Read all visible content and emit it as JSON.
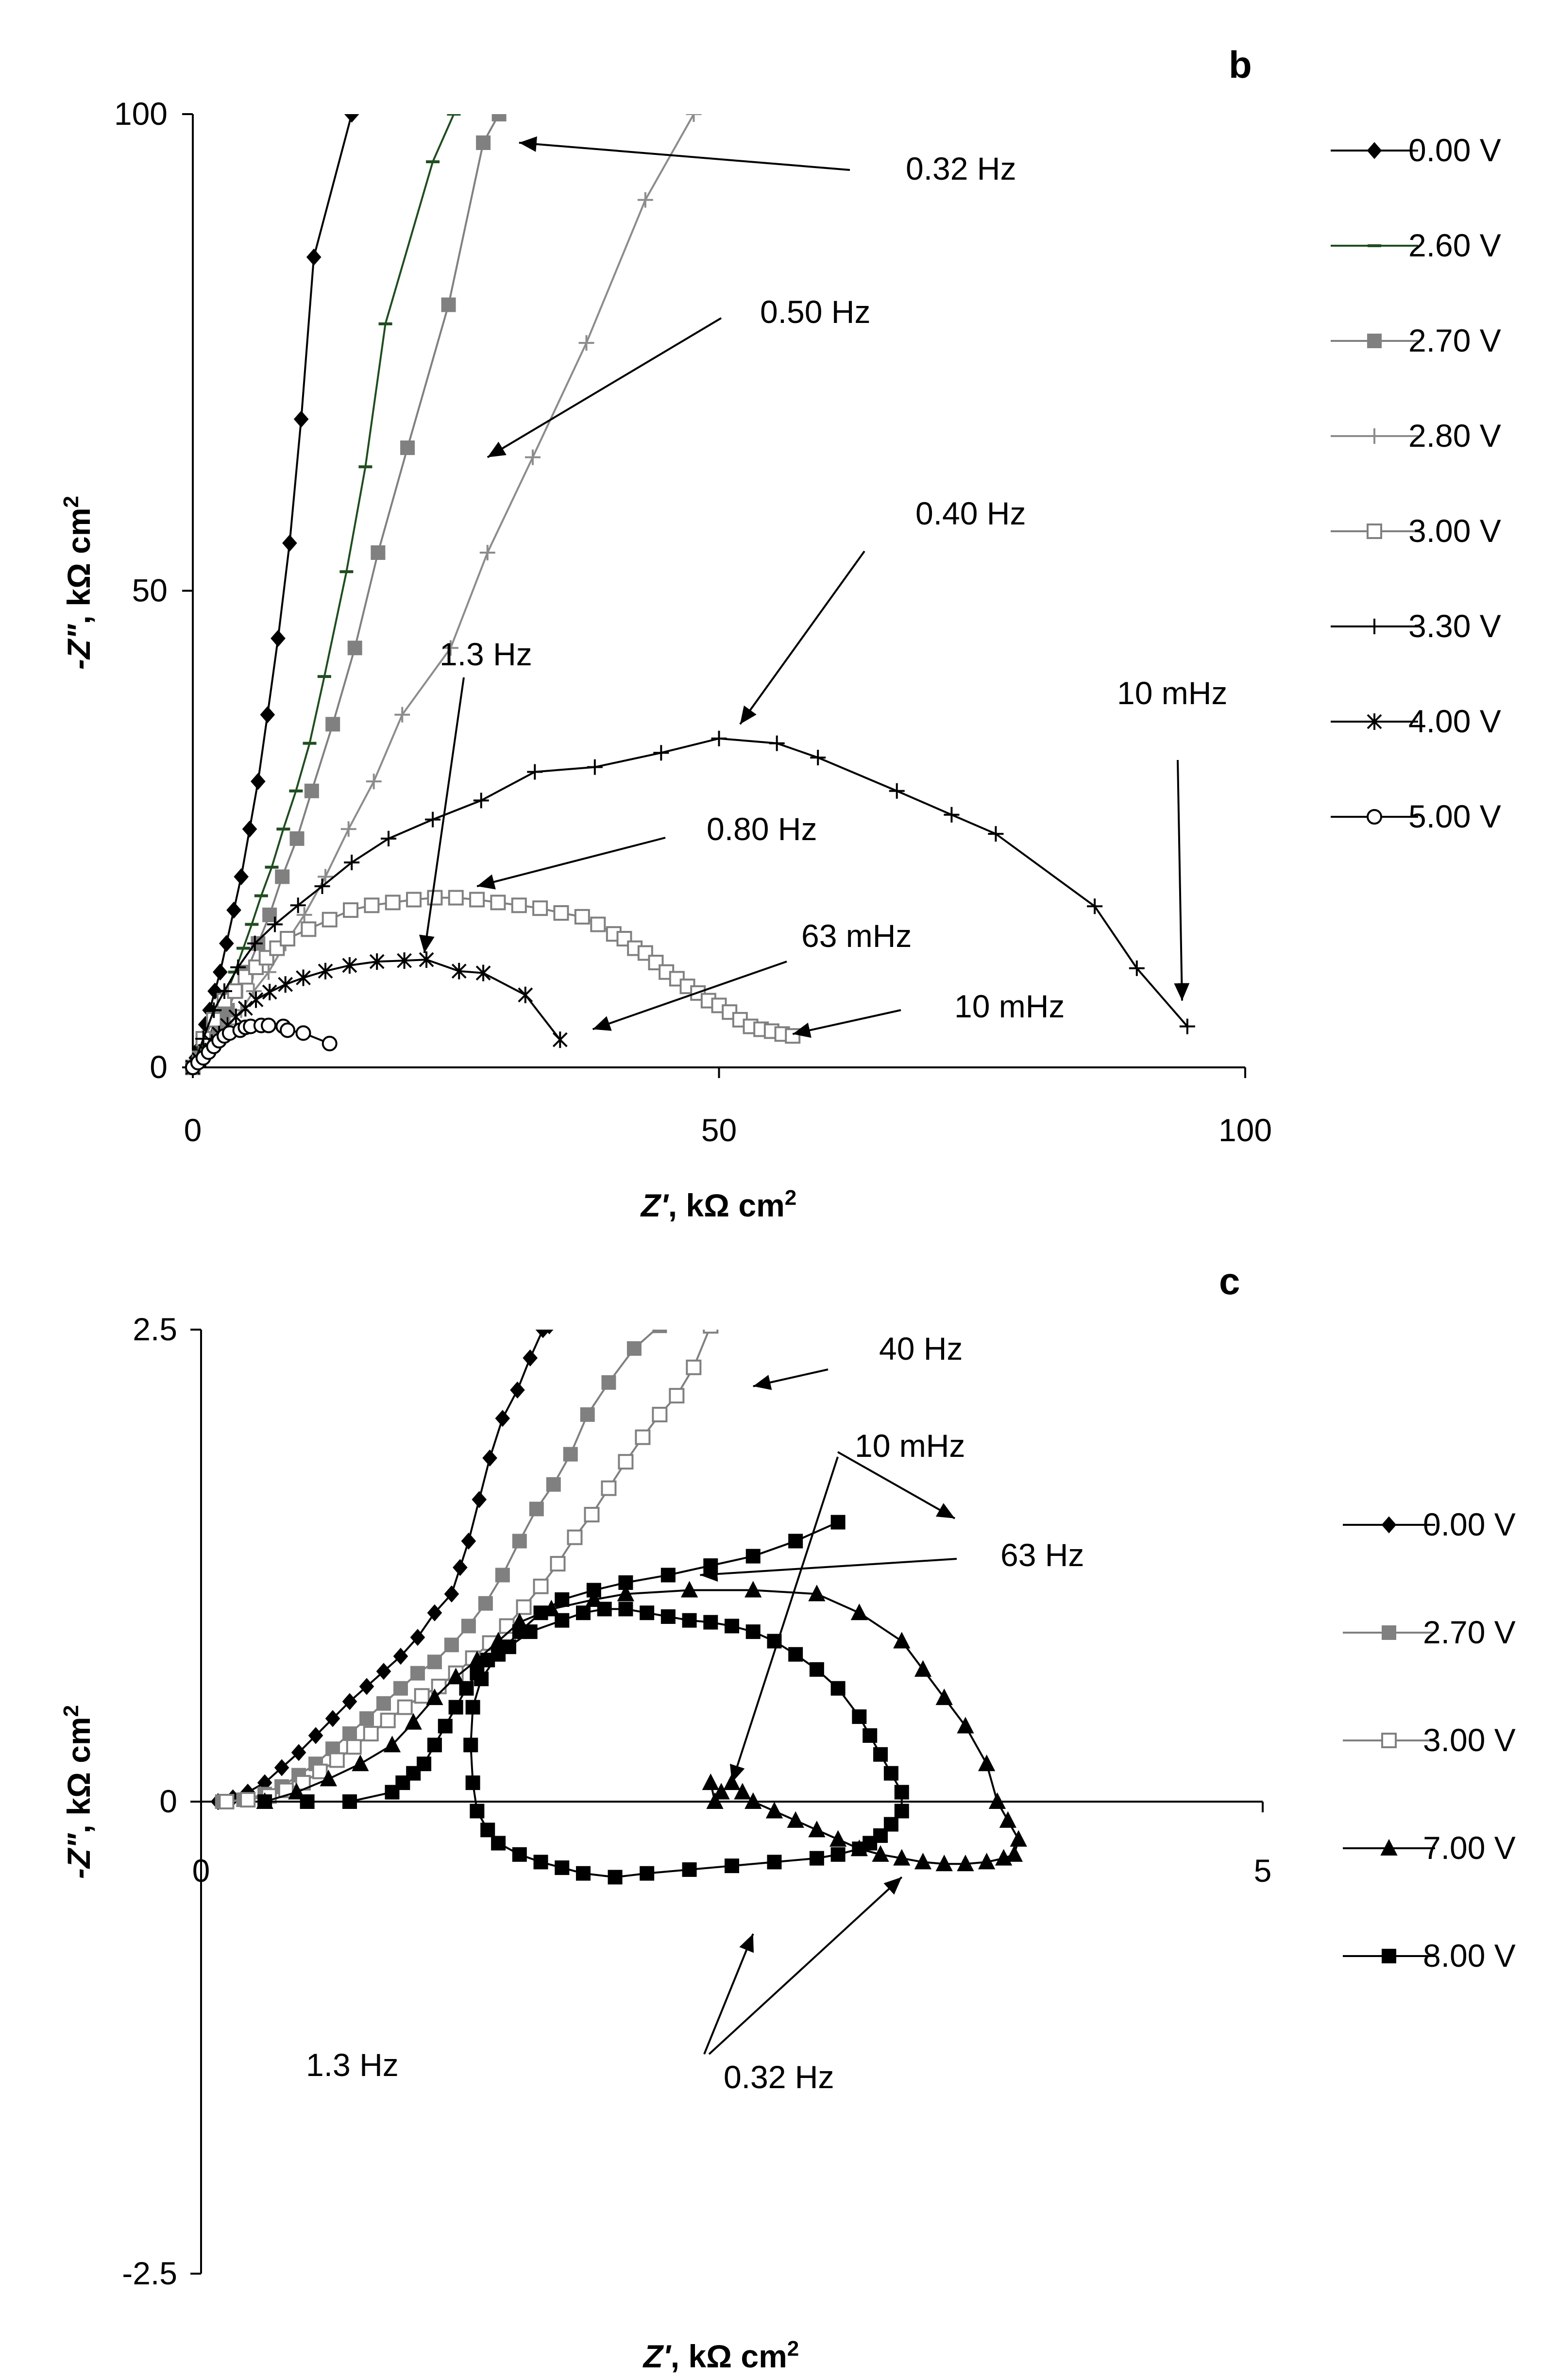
{
  "chart_data": [
    {
      "panel": "b",
      "type": "scatter",
      "xlabel": "Z', kΩ cm²",
      "ylabel": "-Z\", kΩ cm²",
      "xlabel_parts": [
        "Z'",
        ", kΩ cm",
        "2"
      ],
      "ylabel_parts": [
        "-Z\"",
        ", kΩ cm",
        "2"
      ],
      "xlim": [
        0,
        100
      ],
      "ylim": [
        0,
        100
      ],
      "xticks": [
        "0",
        "50",
        "100"
      ],
      "yticks": [
        "0",
        "50",
        "100"
      ],
      "series": [
        {
          "name": "0.00 V",
          "color": "#000000",
          "marker": "diamond",
          "fill": "#000000",
          "x": [
            0,
            0.3,
            0.6,
            0.9,
            1.2,
            1.6,
            2.1,
            2.6,
            3.2,
            3.9,
            4.6,
            5.4,
            6.2,
            7.1,
            8.1,
            9.2,
            10.3,
            11.5,
            15.1
          ],
          "y": [
            0,
            1,
            2,
            3,
            4.5,
            6,
            8,
            10,
            13,
            16.5,
            20,
            25,
            30,
            37,
            45,
            55,
            68,
            85,
            100
          ]
        },
        {
          "name": "2.60 V",
          "color": "#1f4d1f",
          "marker": "dash",
          "fill": "#1f4d1f",
          "x": [
            0,
            0.5,
            1,
            1.5,
            2,
            2.6,
            3.3,
            4,
            4.8,
            5.6,
            6.5,
            7.5,
            8.6,
            9.8,
            11.1,
            12.5,
            14.6,
            16.4,
            18.3,
            22.8,
            24.8
          ],
          "y": [
            0,
            1,
            2,
            3,
            4.5,
            6,
            8,
            10,
            12.5,
            15,
            18,
            21,
            25,
            29,
            34,
            41,
            52,
            63,
            78,
            95,
            100
          ]
        },
        {
          "name": "2.70 V",
          "color": "#808080",
          "marker": "square",
          "fill": "#808080",
          "x": [
            0,
            0.6,
            1.2,
            1.8,
            2.5,
            3.3,
            4.1,
            5.1,
            6.2,
            7.3,
            8.5,
            9.9,
            11.3,
            13.3,
            15.4,
            17.6,
            20.4,
            24.3,
            27.6,
            29.1
          ],
          "y": [
            0,
            1,
            2,
            3,
            4.5,
            6,
            8,
            10,
            13,
            16,
            20,
            24,
            29,
            36,
            44,
            54,
            65,
            80,
            97,
            100
          ]
        },
        {
          "name": "2.80 V",
          "color": "#8c8c8c",
          "marker": "plus",
          "fill": "#8c8c8c",
          "x": [
            0,
            0.8,
            1.6,
            2.5,
            3.5,
            4.6,
            5.8,
            7.2,
            8.8,
            10.6,
            12.6,
            14.8,
            17.2,
            19.9,
            24.5,
            28,
            32.3,
            37.4,
            43,
            47.6
          ],
          "y": [
            0,
            1,
            2,
            3,
            4.5,
            6,
            8,
            10,
            13,
            16,
            20,
            25,
            30,
            37,
            44,
            54,
            64,
            76,
            91,
            100
          ]
        },
        {
          "name": "3.00 V",
          "color": "#808080",
          "marker": "square-open",
          "fill": "#ffffff",
          "x": [
            0,
            1,
            2,
            3,
            4,
            5,
            6,
            7,
            8,
            9,
            11,
            13,
            15,
            17,
            19,
            21,
            23,
            25,
            27,
            29,
            31,
            33,
            35,
            37,
            38.5,
            40,
            41,
            42,
            43,
            44,
            45,
            46,
            47,
            48,
            49,
            50,
            51,
            52,
            53,
            54,
            55,
            56,
            57
          ],
          "y": [
            0,
            3,
            5,
            7,
            8,
            9.5,
            10.5,
            11.5,
            12.5,
            13.5,
            14.5,
            15.5,
            16.5,
            17,
            17.3,
            17.6,
            17.8,
            17.8,
            17.6,
            17.3,
            17,
            16.7,
            16.2,
            15.8,
            15,
            14,
            13.5,
            12.5,
            12,
            11,
            10,
            9.3,
            8.5,
            7.8,
            7,
            6.5,
            5.8,
            5,
            4.3,
            4,
            3.8,
            3.5,
            3.3
          ]
        },
        {
          "name": "3.30 V",
          "color": "#000000",
          "marker": "plus",
          "fill": "#000000",
          "x": [
            0,
            1,
            2,
            3,
            4.3,
            5.9,
            7.8,
            10,
            12.3,
            15.1,
            18.6,
            22.8,
            27.4,
            32.5,
            38.2,
            44.5,
            50,
            55.5,
            59.4,
            66.9,
            72.1,
            76.3,
            85.7,
            89.7,
            94.5
          ],
          "y": [
            0,
            3,
            6,
            8,
            10.5,
            13,
            15,
            17,
            19,
            21.5,
            24,
            26,
            28,
            31,
            31.5,
            33,
            34.5,
            34,
            32.5,
            29,
            26.5,
            24.5,
            16.9,
            10.4,
            4.3
          ]
        },
        {
          "name": "4.00 V",
          "color": "#000000",
          "marker": "asterisk",
          "fill": "#000000",
          "x": [
            0,
            0.6,
            1.2,
            1.8,
            2.5,
            3.3,
            4.1,
            5,
            6,
            7.3,
            8.8,
            10.5,
            12.6,
            14.9,
            17.5,
            20.1,
            22.2,
            25.3,
            27.6,
            31.6,
            34.9
          ],
          "y": [
            0,
            0.8,
            1.7,
            2.6,
            3.5,
            4.4,
            5.3,
            6.2,
            7.1,
            7.9,
            8.7,
            9.4,
            10.1,
            10.7,
            11.1,
            11.2,
            11.3,
            10.1,
            9.9,
            7.6,
            2.9
          ]
        },
        {
          "name": "5.00 V",
          "color": "#000000",
          "marker": "circle-open",
          "fill": "#ffffff",
          "x": [
            0,
            0.5,
            1,
            1.5,
            2,
            2.5,
            3,
            3.5,
            4.5,
            5,
            5.5,
            6.5,
            7.2,
            8.6,
            9,
            10.5,
            13
          ],
          "y": [
            0,
            0.5,
            1,
            1.6,
            2.2,
            2.8,
            3.3,
            3.6,
            3.9,
            4.2,
            4.3,
            4.4,
            4.4,
            4.3,
            3.9,
            3.6,
            2.5
          ]
        }
      ],
      "annotations": [
        {
          "text": "0.32 Hz",
          "points_to": [
            31,
            97
          ]
        },
        {
          "text": "0.50 Hz",
          "points_to": [
            28,
            64
          ]
        },
        {
          "text": "0.40 Hz",
          "points_to": [
            52,
            36
          ]
        },
        {
          "text": "1.3 Hz",
          "points_to": [
            22,
            12
          ]
        },
        {
          "text": "0.80 Hz",
          "points_to": [
            27,
            19
          ]
        },
        {
          "text": "63 mHz",
          "points_to": [
            38,
            4
          ]
        },
        {
          "text": "10 mHz",
          "points_to": [
            57,
            3.5
          ]
        },
        {
          "text": "10 mHz",
          "points_to": [
            94,
            7
          ]
        }
      ]
    },
    {
      "panel": "c",
      "type": "scatter",
      "xlabel": "Z', kΩ cm²",
      "ylabel": "-Z\", kΩ cm²",
      "xlabel_parts": [
        "Z'",
        ", kΩ cm",
        "2"
      ],
      "ylabel_parts": [
        "-Z\"",
        ", kΩ cm",
        "2"
      ],
      "xlim": [
        0,
        5
      ],
      "ylim": [
        -2.5,
        2.5
      ],
      "xticks": [
        "0",
        "5"
      ],
      "yticks": [
        "-2.5",
        "0",
        "2.5"
      ],
      "series": [
        {
          "name": "0.00 V",
          "color": "#000000",
          "marker": "diamond",
          "fill": "#000000",
          "x": [
            0.08,
            0.15,
            0.22,
            0.3,
            0.38,
            0.46,
            0.54,
            0.62,
            0.7,
            0.78,
            0.86,
            0.94,
            1.02,
            1.1,
            1.18,
            1.22,
            1.26,
            1.31,
            1.36,
            1.42,
            1.49,
            1.55,
            1.61,
            1.64
          ],
          "y": [
            0,
            0.02,
            0.05,
            0.1,
            0.18,
            0.26,
            0.35,
            0.44,
            0.53,
            0.61,
            0.69,
            0.77,
            0.87,
            1,
            1.1,
            1.24,
            1.38,
            1.6,
            1.82,
            2.03,
            2.18,
            2.35,
            2.5,
            2.52
          ]
        },
        {
          "name": "2.70 V",
          "color": "#808080",
          "marker": "square",
          "fill": "#808080",
          "x": [
            0.1,
            0.2,
            0.3,
            0.38,
            0.46,
            0.54,
            0.62,
            0.7,
            0.78,
            0.86,
            0.94,
            1.02,
            1.1,
            1.18,
            1.26,
            1.34,
            1.42,
            1.5,
            1.58,
            1.66,
            1.74,
            1.82,
            1.92,
            2.04,
            2.16
          ],
          "y": [
            0,
            0.01,
            0.04,
            0.08,
            0.14,
            0.2,
            0.28,
            0.36,
            0.44,
            0.52,
            0.6,
            0.68,
            0.74,
            0.83,
            0.93,
            1.05,
            1.2,
            1.38,
            1.55,
            1.68,
            1.84,
            2.05,
            2.22,
            2.4,
            2.52
          ]
        },
        {
          "name": "3.00 V",
          "color": "#808080",
          "marker": "square-open",
          "fill": "#ffffff",
          "x": [
            0.12,
            0.22,
            0.32,
            0.4,
            0.48,
            0.56,
            0.64,
            0.72,
            0.8,
            0.88,
            0.96,
            1.04,
            1.12,
            1.2,
            1.28,
            1.36,
            1.44,
            1.52,
            1.6,
            1.68,
            1.76,
            1.84,
            1.92,
            2.0,
            2.08,
            2.16,
            2.24,
            2.32,
            2.4
          ],
          "y": [
            0,
            0.01,
            0.03,
            0.06,
            0.1,
            0.16,
            0.22,
            0.29,
            0.36,
            0.43,
            0.5,
            0.56,
            0.61,
            0.68,
            0.76,
            0.84,
            0.93,
            1.03,
            1.14,
            1.26,
            1.4,
            1.52,
            1.66,
            1.8,
            1.93,
            2.05,
            2.15,
            2.3,
            2.52
          ]
        },
        {
          "name": "7.00 V",
          "color": "#000000",
          "marker": "triangle",
          "fill": "#000000",
          "x": [
            0.3,
            0.45,
            0.6,
            0.75,
            0.9,
            1.0,
            1.1,
            1.2,
            1.3,
            1.4,
            1.5,
            1.65,
            1.85,
            2.0,
            2.3,
            2.6,
            2.9,
            3.1,
            3.3,
            3.4,
            3.5,
            3.6,
            3.7,
            3.75,
            3.8,
            3.85,
            3.83,
            3.78,
            3.7,
            3.6,
            3.5,
            3.4,
            3.3,
            3.2,
            3.1,
            3.0,
            2.9,
            2.8,
            2.7,
            2.6,
            2.55,
            2.5,
            2.45,
            2.42,
            2.4
          ],
          "y": [
            0,
            0.05,
            0.12,
            0.2,
            0.3,
            0.42,
            0.55,
            0.66,
            0.75,
            0.85,
            0.95,
            1.02,
            1.07,
            1.1,
            1.12,
            1.12,
            1.1,
            1.0,
            0.85,
            0.7,
            0.55,
            0.4,
            0.2,
            0.0,
            -0.1,
            -0.2,
            -0.28,
            -0.3,
            -0.32,
            -0.33,
            -0.33,
            -0.32,
            -0.3,
            -0.28,
            -0.25,
            -0.2,
            -0.15,
            -0.1,
            -0.05,
            0.0,
            0.05,
            0.1,
            0.05,
            0.0,
            0.1
          ]
        },
        {
          "name": "8.00 V",
          "color": "#000000",
          "marker": "square",
          "fill": "#000000",
          "x": [
            0.3,
            0.5,
            0.7,
            0.9,
            0.95,
            1.0,
            1.05,
            1.1,
            1.15,
            1.2,
            1.25,
            1.3,
            1.35,
            1.45,
            1.55,
            1.7,
            1.8,
            1.9,
            2.0,
            2.1,
            2.2,
            2.3,
            2.4,
            2.5,
            2.6,
            2.7,
            2.8,
            2.9,
            3.0,
            3.1,
            3.15,
            3.2,
            3.25,
            3.3,
            3.3,
            3.25,
            3.2,
            3.15,
            3.1,
            3.0,
            2.9,
            2.7,
            2.5,
            2.3,
            2.1,
            1.95,
            1.8,
            1.7,
            1.6,
            1.5,
            1.4,
            1.35,
            1.3,
            1.28,
            1.27,
            1.28,
            1.32,
            1.4,
            1.5,
            1.6,
            1.7,
            1.85,
            2.0,
            2.2,
            2.4,
            2.6,
            2.8,
            3.0
          ],
          "y": [
            0,
            0.0,
            0.0,
            0.05,
            0.1,
            0.15,
            0.2,
            0.3,
            0.4,
            0.5,
            0.6,
            0.68,
            0.75,
            0.82,
            0.9,
            0.96,
            1.0,
            1.02,
            1.02,
            1.0,
            0.98,
            0.96,
            0.95,
            0.93,
            0.9,
            0.85,
            0.78,
            0.7,
            0.6,
            0.45,
            0.35,
            0.25,
            0.15,
            0.05,
            -0.05,
            -0.12,
            -0.18,
            -0.22,
            -0.25,
            -0.28,
            -0.3,
            -0.32,
            -0.34,
            -0.36,
            -0.38,
            -0.4,
            -0.38,
            -0.35,
            -0.32,
            -0.28,
            -0.22,
            -0.15,
            -0.05,
            0.1,
            0.3,
            0.5,
            0.65,
            0.78,
            0.9,
            1.0,
            1.07,
            1.12,
            1.16,
            1.2,
            1.25,
            1.3,
            1.38,
            1.48
          ]
        }
      ],
      "annotations": [
        {
          "text": "40 Hz",
          "points_to": [
            2.6,
            2.2
          ]
        },
        {
          "text": "10 mHz",
          "points_to": [
            3.55,
            1.5
          ]
        },
        {
          "text": "10 mHz",
          "points_to": [
            2.5,
            0.1
          ]
        },
        {
          "text": "63 Hz",
          "points_to": [
            2.35,
            1.2
          ]
        },
        {
          "text": "1.3 Hz",
          "points_to": null
        },
        {
          "text": "0.32 Hz",
          "points_to": [
            2.6,
            -0.7
          ]
        },
        {
          "text": "0.32 Hz",
          "points_to": [
            3.3,
            -0.4
          ]
        }
      ]
    }
  ]
}
